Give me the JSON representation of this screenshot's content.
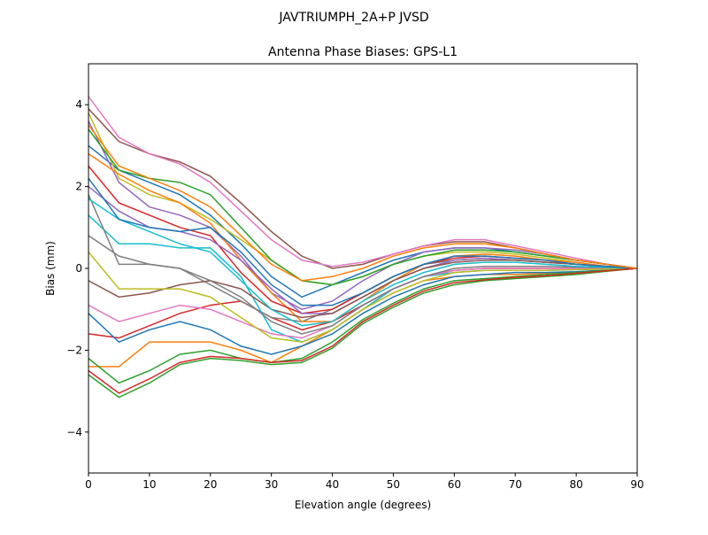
{
  "chart_data": {
    "type": "line",
    "suptitle": "JAVTRIUMPH_2A+P JVSD",
    "title": "Antenna Phase Biases: GPS-L1",
    "xlabel": "Elevation angle (degrees)",
    "ylabel": "Bias (mm)",
    "x": [
      0,
      5,
      10,
      15,
      20,
      25,
      30,
      35,
      40,
      45,
      50,
      55,
      60,
      65,
      70,
      75,
      80,
      85,
      90
    ],
    "xlim": [
      0,
      90
    ],
    "xticks": [
      0,
      10,
      20,
      30,
      40,
      50,
      60,
      70,
      80,
      90
    ],
    "ylim": [
      -5,
      5
    ],
    "yticks": [
      {
        "value": -4,
        "label": "−4"
      },
      {
        "value": -2,
        "label": "−2"
      },
      0,
      2,
      4
    ],
    "grid": false,
    "series": [
      {
        "color": "#1f77b4",
        "values": [
          3.0,
          2.4,
          2.1,
          1.8,
          1.3,
          0.6,
          -0.2,
          -0.7,
          -0.4,
          -0.1,
          0.2,
          0.4,
          0.5,
          0.5,
          0.4,
          0.3,
          0.2,
          0.1,
          0
        ]
      },
      {
        "color": "#ff7f0e",
        "values": [
          -2.4,
          -2.4,
          -1.8,
          -1.8,
          -1.8,
          -2.0,
          -2.3,
          -1.9,
          -1.5,
          -1.0,
          -0.6,
          -0.3,
          -0.2,
          -0.15,
          -0.15,
          -0.12,
          -0.1,
          -0.05,
          0
        ]
      },
      {
        "color": "#2ca02c",
        "values": [
          -2.6,
          -3.15,
          -2.8,
          -2.35,
          -2.2,
          -2.25,
          -2.35,
          -2.3,
          -1.95,
          -1.35,
          -0.95,
          -0.6,
          -0.4,
          -0.3,
          -0.25,
          -0.2,
          -0.15,
          -0.07,
          0
        ]
      },
      {
        "color": "#d62728",
        "values": [
          -1.6,
          -1.7,
          -1.4,
          -1.1,
          -0.9,
          -0.8,
          -1.2,
          -1.5,
          -1.3,
          -0.9,
          -0.5,
          -0.2,
          -0.05,
          0.0,
          0.0,
          0.0,
          0.0,
          0.0,
          0
        ]
      },
      {
        "color": "#9467bd",
        "values": [
          3.6,
          2.1,
          1.5,
          1.3,
          1.0,
          0.3,
          -0.6,
          -1.0,
          -0.8,
          -0.3,
          0.1,
          0.4,
          0.5,
          0.5,
          0.45,
          0.35,
          0.2,
          0.1,
          0
        ]
      },
      {
        "color": "#8c564b",
        "values": [
          3.9,
          3.1,
          2.8,
          2.6,
          2.25,
          1.6,
          0.9,
          0.3,
          0.0,
          0.1,
          0.35,
          0.55,
          0.65,
          0.65,
          0.5,
          0.35,
          0.2,
          0.1,
          0
        ]
      },
      {
        "color": "#e377c2",
        "values": [
          4.2,
          3.2,
          2.8,
          2.55,
          2.1,
          1.4,
          0.7,
          0.2,
          0.05,
          0.15,
          0.35,
          0.55,
          0.7,
          0.7,
          0.55,
          0.4,
          0.25,
          0.1,
          0
        ]
      },
      {
        "color": "#7f7f7f",
        "values": [
          0.8,
          0.3,
          0.1,
          0.0,
          -0.4,
          -0.8,
          -1.2,
          -1.3,
          -1.0,
          -0.6,
          -0.2,
          0.1,
          0.2,
          0.25,
          0.2,
          0.15,
          0.1,
          0.05,
          0
        ]
      },
      {
        "color": "#bcbd22",
        "values": [
          3.8,
          2.2,
          1.8,
          1.6,
          1.2,
          0.7,
          0.2,
          -0.3,
          -0.4,
          -0.2,
          0.1,
          0.3,
          0.4,
          0.4,
          0.35,
          0.25,
          0.15,
          0.05,
          0
        ]
      },
      {
        "color": "#17becf",
        "values": [
          1.3,
          0.6,
          0.6,
          0.5,
          0.5,
          -0.2,
          -1.5,
          -1.8,
          -1.5,
          -1.0,
          -0.5,
          -0.2,
          -0.1,
          -0.05,
          -0.05,
          -0.05,
          -0.03,
          -0.02,
          0
        ]
      },
      {
        "color": "#1f77b4",
        "values": [
          -1.1,
          -1.8,
          -1.5,
          -1.3,
          -1.5,
          -1.9,
          -2.1,
          -1.9,
          -1.6,
          -1.1,
          -0.7,
          -0.4,
          -0.2,
          -0.15,
          -0.1,
          -0.1,
          -0.08,
          -0.04,
          0
        ]
      },
      {
        "color": "#ff7f0e",
        "values": [
          2.8,
          2.3,
          1.9,
          1.6,
          1.1,
          0.2,
          -0.6,
          -1.3,
          -1.3,
          -0.8,
          -0.3,
          0.1,
          0.3,
          0.35,
          0.3,
          0.2,
          0.15,
          0.05,
          0
        ]
      },
      {
        "color": "#2ca02c",
        "values": [
          3.4,
          2.4,
          2.2,
          2.1,
          1.8,
          1.0,
          0.2,
          -0.3,
          -0.4,
          -0.2,
          0.1,
          0.3,
          0.45,
          0.45,
          0.4,
          0.3,
          0.2,
          0.1,
          0
        ]
      },
      {
        "color": "#d62728",
        "values": [
          2.5,
          1.6,
          1.3,
          1.0,
          0.8,
          -0.1,
          -0.8,
          -1.1,
          -1.0,
          -0.6,
          -0.2,
          0.1,
          0.25,
          0.3,
          0.25,
          0.2,
          0.1,
          0.05,
          0
        ]
      },
      {
        "color": "#9467bd",
        "values": [
          2.0,
          1.4,
          1.0,
          0.9,
          0.7,
          0.2,
          -0.5,
          -1.1,
          -1.1,
          -0.7,
          -0.3,
          0.0,
          0.2,
          0.25,
          0.2,
          0.15,
          0.1,
          0.05,
          0
        ]
      },
      {
        "color": "#8c564b",
        "values": [
          -0.3,
          -0.7,
          -0.6,
          -0.4,
          -0.3,
          -0.5,
          -1.0,
          -1.2,
          -1.1,
          -0.7,
          -0.3,
          0.0,
          0.15,
          0.2,
          0.2,
          0.15,
          0.1,
          0.05,
          0
        ]
      },
      {
        "color": "#e377c2",
        "values": [
          -0.9,
          -1.3,
          -1.1,
          -0.9,
          -1.0,
          -1.3,
          -1.6,
          -1.7,
          -1.4,
          -0.9,
          -0.5,
          -0.2,
          -0.05,
          0.0,
          0.0,
          0.0,
          0.0,
          0.0,
          0
        ]
      },
      {
        "color": "#7f7f7f",
        "values": [
          1.8,
          0.1,
          0.1,
          0.0,
          -0.3,
          -0.7,
          -1.3,
          -1.6,
          -1.4,
          -0.9,
          -0.5,
          -0.2,
          0.0,
          0.05,
          0.05,
          0.05,
          0.03,
          0.02,
          0
        ]
      },
      {
        "color": "#bcbd22",
        "values": [
          0.4,
          -0.5,
          -0.5,
          -0.5,
          -0.7,
          -1.2,
          -1.7,
          -1.8,
          -1.5,
          -1.0,
          -0.6,
          -0.3,
          -0.1,
          -0.05,
          -0.05,
          -0.05,
          -0.03,
          -0.02,
          0
        ]
      },
      {
        "color": "#17becf",
        "values": [
          1.7,
          1.2,
          0.9,
          0.6,
          0.4,
          -0.3,
          -1.0,
          -1.4,
          -1.3,
          -0.8,
          -0.4,
          -0.1,
          0.1,
          0.15,
          0.15,
          0.1,
          0.05,
          0.03,
          0
        ]
      },
      {
        "color": "#1f77b4",
        "values": [
          2.2,
          1.2,
          1.0,
          0.9,
          1.0,
          0.4,
          -0.4,
          -0.9,
          -0.9,
          -0.6,
          -0.2,
          0.1,
          0.3,
          0.3,
          0.25,
          0.2,
          0.1,
          0.05,
          0
        ]
      },
      {
        "color": "#2ca02c",
        "values": [
          -2.2,
          -2.8,
          -2.5,
          -2.1,
          -2.0,
          -2.2,
          -2.3,
          -2.2,
          -1.8,
          -1.25,
          -0.85,
          -0.5,
          -0.3,
          -0.25,
          -0.2,
          -0.15,
          -0.1,
          -0.05,
          0
        ]
      },
      {
        "color": "#d62728",
        "values": [
          -2.5,
          -3.05,
          -2.7,
          -2.3,
          -2.15,
          -2.2,
          -2.3,
          -2.25,
          -1.9,
          -1.3,
          -0.9,
          -0.55,
          -0.35,
          -0.28,
          -0.22,
          -0.18,
          -0.12,
          -0.06,
          0
        ]
      },
      {
        "color": "#ff7f0e",
        "values": [
          3.5,
          2.5,
          2.2,
          1.9,
          1.5,
          0.8,
          0.1,
          -0.3,
          -0.2,
          0.0,
          0.3,
          0.5,
          0.6,
          0.6,
          0.5,
          0.35,
          0.2,
          0.1,
          0
        ]
      }
    ]
  }
}
